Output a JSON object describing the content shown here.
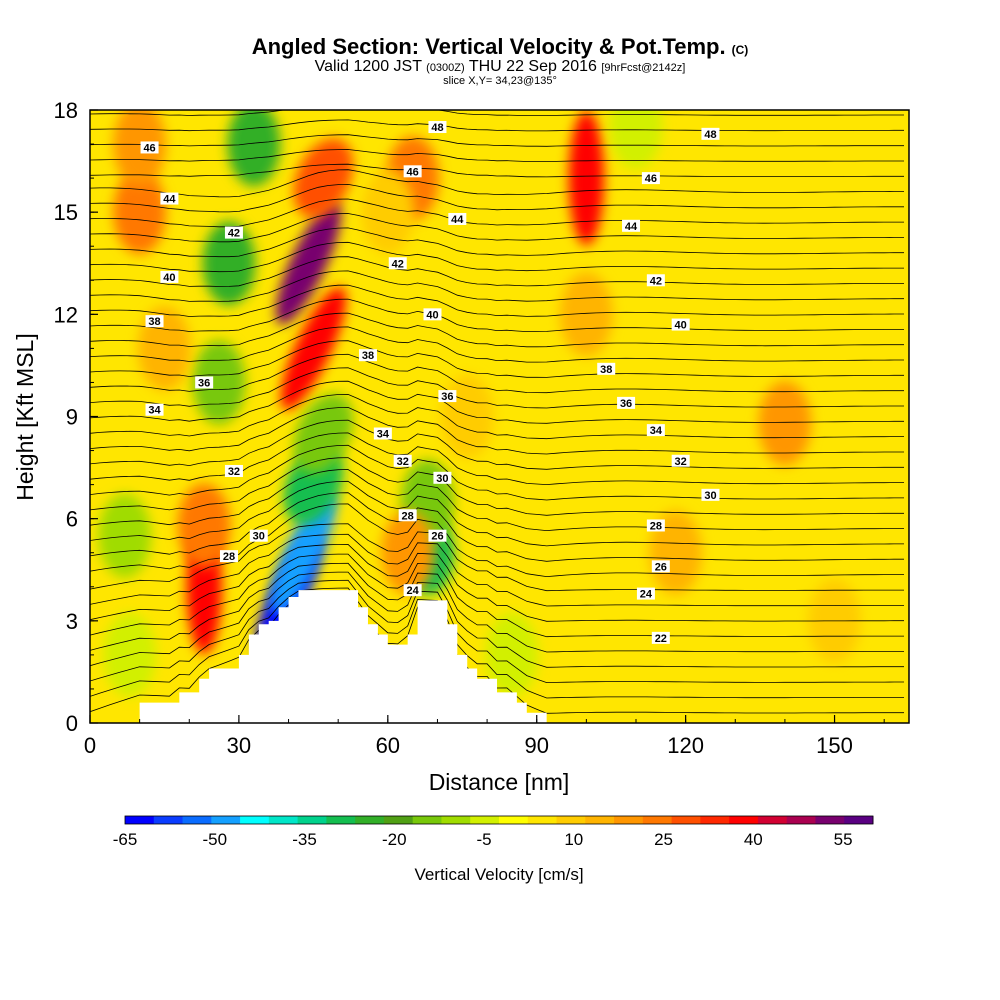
{
  "title": {
    "main": "Angled Section: Vertical Velocity & Pot.Temp.",
    "main_tag": "(C)",
    "valid_prefix": "Valid 1200 JST",
    "valid_utc": "(0300Z)",
    "valid_date": "THU 22 Sep 2016",
    "valid_fcst": "[9hrFcst@2142z]",
    "slice": "slice X,Y= 34,23@135°"
  },
  "chart_data": {
    "type": "heatmap",
    "title": "Angled Section: Vertical Velocity & Pot.Temp.",
    "xlabel": "Distance [nm]",
    "ylabel": "Height [Kft MSL]",
    "xlim": [
      0,
      165
    ],
    "ylim": [
      0,
      18
    ],
    "x_ticks": [
      0,
      30,
      60,
      90,
      120,
      150
    ],
    "y_ticks": [
      0,
      3,
      6,
      9,
      12,
      15,
      18
    ],
    "colorbar": {
      "label": "Vertical Velocity [cm/s]",
      "tick_labels": [
        -65,
        -50,
        -35,
        -20,
        -5,
        10,
        25,
        40,
        55
      ],
      "levels": [
        -65,
        -60,
        -55,
        -50,
        -45,
        -40,
        -35,
        -30,
        -25,
        -20,
        -15,
        -10,
        -5,
        0,
        5,
        10,
        15,
        20,
        25,
        30,
        35,
        40,
        45,
        50,
        55,
        60
      ],
      "colors": [
        "#0000ff",
        "#0a3cff",
        "#0a6cff",
        "#14a0ff",
        "#00ffff",
        "#00e6c8",
        "#00d28c",
        "#14be50",
        "#32af28",
        "#50a014",
        "#78c80a",
        "#a0dc00",
        "#d2f000",
        "#ffff00",
        "#ffe600",
        "#ffcc00",
        "#ffb400",
        "#ff9600",
        "#ff7800",
        "#ff5000",
        "#ff2800",
        "#ff0000",
        "#d20032",
        "#aa0050",
        "#78006e",
        "#5a0082"
      ]
    },
    "terrain_profile": {
      "x": [
        0,
        10,
        16,
        18,
        20,
        22,
        24,
        30,
        32,
        34,
        36,
        38,
        40,
        42,
        44,
        46,
        52,
        54,
        56,
        58,
        60,
        62,
        64,
        66,
        70,
        72,
        74,
        76,
        78,
        80,
        82,
        84,
        86,
        88,
        92,
        165
      ],
      "height": [
        0,
        0.6,
        0.6,
        0.9,
        0.9,
        1.3,
        1.6,
        2.0,
        2.6,
        2.9,
        3.0,
        3.4,
        3.7,
        3.9,
        3.9,
        3.9,
        3.9,
        3.4,
        2.9,
        2.6,
        2.3,
        2.3,
        2.6,
        3.6,
        3.6,
        2.9,
        2.0,
        1.6,
        1.3,
        1.3,
        0.9,
        0.9,
        0.6,
        0.3,
        0,
        0
      ]
    },
    "velocity_cells": [
      {
        "x": 10,
        "y": 15.0,
        "value": 25
      },
      {
        "x": 10,
        "y": 17.0,
        "value": 20
      },
      {
        "x": 28,
        "y": 13.5,
        "value": -25
      },
      {
        "x": 26,
        "y": 10.0,
        "value": -15
      },
      {
        "x": 33,
        "y": 17.0,
        "value": -25
      },
      {
        "x": 44,
        "y": 13.5,
        "value": 55
      },
      {
        "x": 45,
        "y": 11.0,
        "value": 40
      },
      {
        "x": 47,
        "y": 16.0,
        "value": 30
      },
      {
        "x": 40,
        "y": 3.8,
        "value": -65
      },
      {
        "x": 43,
        "y": 5.0,
        "value": -50
      },
      {
        "x": 45,
        "y": 7.0,
        "value": -30
      },
      {
        "x": 47,
        "y": 8.5,
        "value": -15
      },
      {
        "x": 23,
        "y": 4.0,
        "value": 40
      },
      {
        "x": 23,
        "y": 5.8,
        "value": 25
      },
      {
        "x": 7,
        "y": 5.5,
        "value": -10
      },
      {
        "x": 68,
        "y": 5.0,
        "value": -30
      },
      {
        "x": 68,
        "y": 6.5,
        "value": -15
      },
      {
        "x": 64,
        "y": 5.0,
        "value": 20
      },
      {
        "x": 65,
        "y": 16.0,
        "value": 25
      },
      {
        "x": 100,
        "y": 16.0,
        "value": 40
      },
      {
        "x": 100,
        "y": 12.0,
        "value": 15
      },
      {
        "x": 85,
        "y": 2.0,
        "value": -5
      },
      {
        "x": 8,
        "y": 2.0,
        "value": -5
      },
      {
        "x": 140,
        "y": 8.8,
        "value": 20
      },
      {
        "x": 118,
        "y": 5.0,
        "value": 15
      },
      {
        "x": 60,
        "y": 15.0,
        "value": 10
      },
      {
        "x": 80,
        "y": 13.0,
        "value": 5
      },
      {
        "x": 120,
        "y": 16.0,
        "value": 5
      },
      {
        "x": 110,
        "y": 17.5,
        "value": -5
      },
      {
        "x": 160,
        "y": 12.0,
        "value": 5
      },
      {
        "x": 150,
        "y": 3.0,
        "value": 10
      },
      {
        "x": 15,
        "y": 11.0,
        "value": 15
      },
      {
        "x": 76,
        "y": 9.0,
        "value": 10
      }
    ],
    "isentrope_labels": [
      {
        "text": "48",
        "x": 70,
        "y": 17.5
      },
      {
        "text": "48",
        "x": 125,
        "y": 17.3
      },
      {
        "text": "46",
        "x": 12,
        "y": 16.9
      },
      {
        "text": "46",
        "x": 65,
        "y": 16.2
      },
      {
        "text": "46",
        "x": 113,
        "y": 16.0
      },
      {
        "text": "44",
        "x": 16,
        "y": 15.4
      },
      {
        "text": "44",
        "x": 74,
        "y": 14.8
      },
      {
        "text": "44",
        "x": 109,
        "y": 14.6
      },
      {
        "text": "42",
        "x": 29,
        "y": 14.4
      },
      {
        "text": "42",
        "x": 62,
        "y": 13.5
      },
      {
        "text": "42",
        "x": 114,
        "y": 13.0
      },
      {
        "text": "40",
        "x": 16,
        "y": 13.1
      },
      {
        "text": "40",
        "x": 69,
        "y": 12.0
      },
      {
        "text": "40",
        "x": 119,
        "y": 11.7
      },
      {
        "text": "38",
        "x": 13,
        "y": 11.8
      },
      {
        "text": "38",
        "x": 56,
        "y": 10.8
      },
      {
        "text": "38",
        "x": 104,
        "y": 10.4
      },
      {
        "text": "36",
        "x": 23,
        "y": 10.0
      },
      {
        "text": "36",
        "x": 72,
        "y": 9.6
      },
      {
        "text": "36",
        "x": 108,
        "y": 9.4
      },
      {
        "text": "34",
        "x": 13,
        "y": 9.2
      },
      {
        "text": "34",
        "x": 59,
        "y": 8.5
      },
      {
        "text": "34",
        "x": 114,
        "y": 8.6
      },
      {
        "text": "32",
        "x": 29,
        "y": 7.4
      },
      {
        "text": "32",
        "x": 63,
        "y": 7.7
      },
      {
        "text": "32",
        "x": 119,
        "y": 7.7
      },
      {
        "text": "30",
        "x": 71,
        "y": 7.2
      },
      {
        "text": "30",
        "x": 125,
        "y": 6.7
      },
      {
        "text": "30",
        "x": 34,
        "y": 5.5
      },
      {
        "text": "28",
        "x": 64,
        "y": 6.1
      },
      {
        "text": "28",
        "x": 114,
        "y": 5.8
      },
      {
        "text": "28",
        "x": 28,
        "y": 4.9
      },
      {
        "text": "26",
        "x": 70,
        "y": 5.5
      },
      {
        "text": "26",
        "x": 115,
        "y": 4.6
      },
      {
        "text": "24",
        "x": 65,
        "y": 3.9
      },
      {
        "text": "24",
        "x": 112,
        "y": 3.8
      },
      {
        "text": "22",
        "x": 115,
        "y": 2.5
      }
    ]
  }
}
